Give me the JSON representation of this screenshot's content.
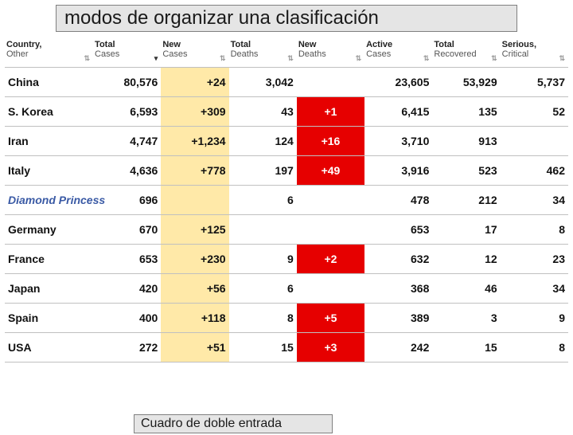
{
  "title": "modos de organizar una clasificación",
  "caption": "Cuadro de doble entrada",
  "columns": [
    {
      "line1": "Country,",
      "line2": "Other"
    },
    {
      "line1": "Total",
      "line2": "Cases"
    },
    {
      "line1": "New",
      "line2": "Cases"
    },
    {
      "line1": "Total",
      "line2": "Deaths"
    },
    {
      "line1": "New",
      "line2": "Deaths"
    },
    {
      "line1": "Active",
      "line2": "Cases"
    },
    {
      "line1": "Total",
      "line2": "Recovered"
    },
    {
      "line1": "Serious,",
      "line2": "Critical"
    }
  ],
  "sort_active_col": 1,
  "rows": [
    {
      "country": "China",
      "total_cases": "80,576",
      "new_cases": "+24",
      "total_deaths": "3,042",
      "new_deaths": "",
      "active": "23,605",
      "recovered": "53,929",
      "critical": "5,737",
      "nd_red": false,
      "diamond": false
    },
    {
      "country": "S. Korea",
      "total_cases": "6,593",
      "new_cases": "+309",
      "total_deaths": "43",
      "new_deaths": "+1",
      "active": "6,415",
      "recovered": "135",
      "critical": "52",
      "nd_red": true,
      "diamond": false
    },
    {
      "country": "Iran",
      "total_cases": "4,747",
      "new_cases": "+1,234",
      "total_deaths": "124",
      "new_deaths": "+16",
      "active": "3,710",
      "recovered": "913",
      "critical": "",
      "nd_red": true,
      "diamond": false
    },
    {
      "country": "Italy",
      "total_cases": "4,636",
      "new_cases": "+778",
      "total_deaths": "197",
      "new_deaths": "+49",
      "active": "3,916",
      "recovered": "523",
      "critical": "462",
      "nd_red": true,
      "diamond": false
    },
    {
      "country": "Diamond Princess",
      "total_cases": "696",
      "new_cases": "",
      "total_deaths": "6",
      "new_deaths": "",
      "active": "478",
      "recovered": "212",
      "critical": "34",
      "nd_red": false,
      "diamond": true
    },
    {
      "country": "Germany",
      "total_cases": "670",
      "new_cases": "+125",
      "total_deaths": "",
      "new_deaths": "",
      "active": "653",
      "recovered": "17",
      "critical": "8",
      "nd_red": false,
      "diamond": false
    },
    {
      "country": "France",
      "total_cases": "653",
      "new_cases": "+230",
      "total_deaths": "9",
      "new_deaths": "+2",
      "active": "632",
      "recovered": "12",
      "critical": "23",
      "nd_red": true,
      "diamond": false
    },
    {
      "country": "Japan",
      "total_cases": "420",
      "new_cases": "+56",
      "total_deaths": "6",
      "new_deaths": "",
      "active": "368",
      "recovered": "46",
      "critical": "34",
      "nd_red": false,
      "diamond": false
    },
    {
      "country": "Spain",
      "total_cases": "400",
      "new_cases": "+118",
      "total_deaths": "8",
      "new_deaths": "+5",
      "active": "389",
      "recovered": "3",
      "critical": "9",
      "nd_red": true,
      "diamond": false
    },
    {
      "country": "USA",
      "total_cases": "272",
      "new_cases": "+51",
      "total_deaths": "15",
      "new_deaths": "+3",
      "active": "242",
      "recovered": "15",
      "critical": "8",
      "nd_red": true,
      "diamond": false
    }
  ],
  "styling": {
    "title_bg": "#e5e5e5",
    "title_border": "#808080",
    "newcases_bg": "#ffe9a8",
    "newdeaths_red_bg": "#e60000",
    "newdeaths_red_fg": "#ffffff",
    "row_border": "#c0c0c0",
    "diamond_color": "#3a5aa5",
    "header_font_size": 11,
    "body_font_size": 14,
    "title_font_size": 24,
    "caption_font_size": 16
  }
}
